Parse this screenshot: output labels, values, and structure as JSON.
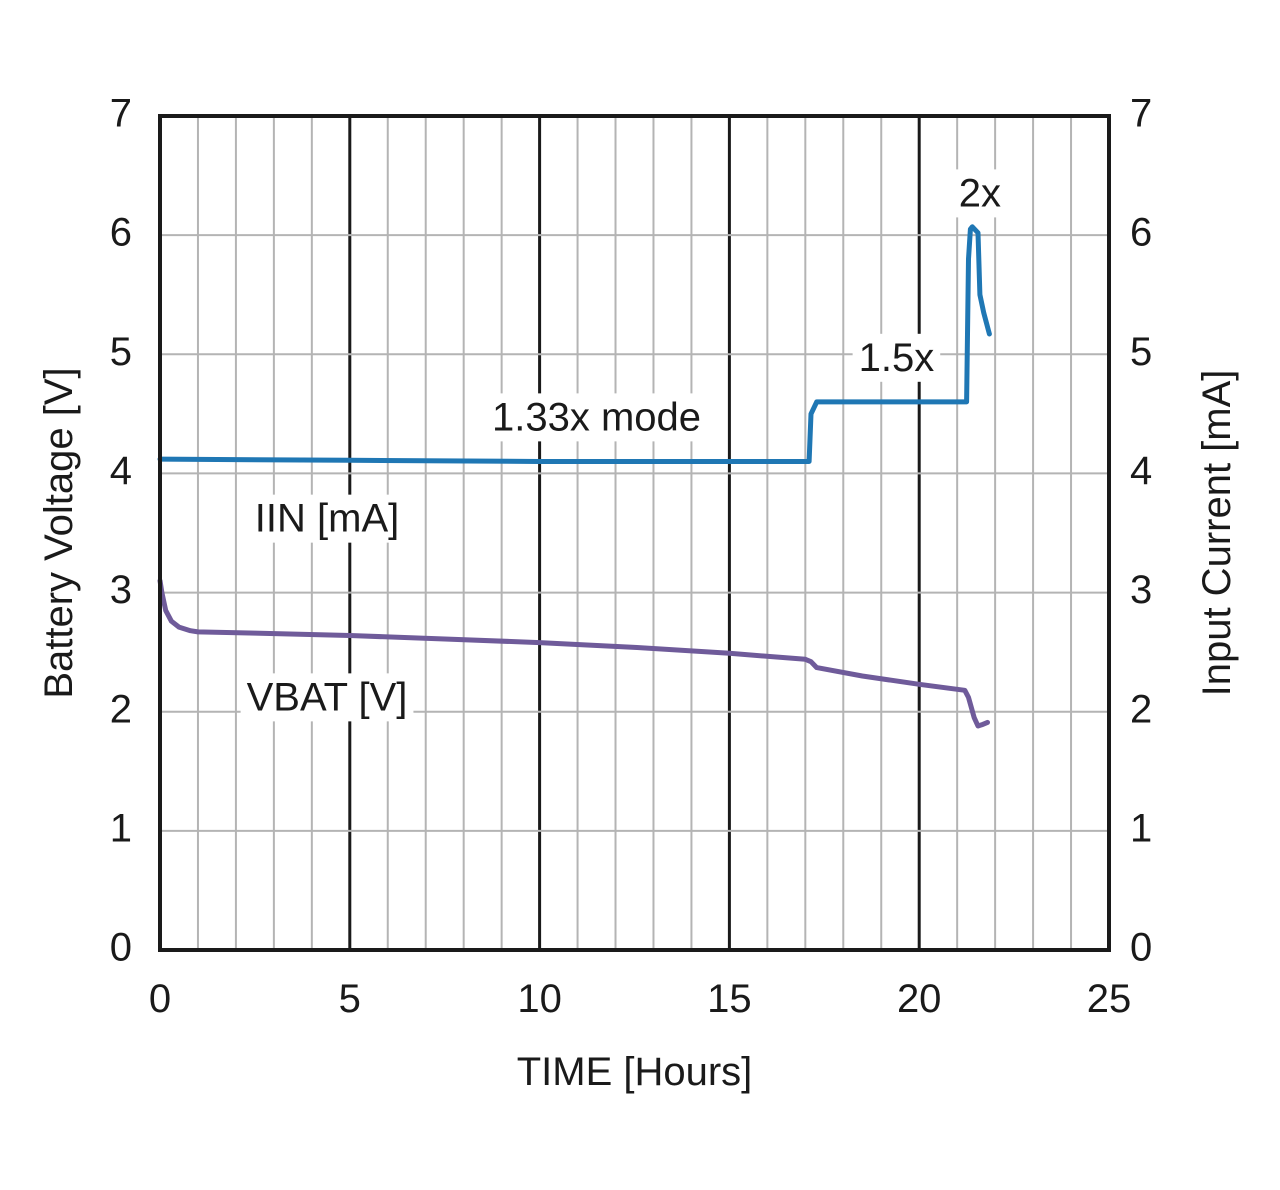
{
  "chart_data": {
    "type": "line",
    "title": "",
    "xlabel": "TIME [Hours]",
    "ylabel": "Battery Voltage [V]",
    "y2label": "Input Current [mA]",
    "xlim": [
      0,
      25
    ],
    "ylim": [
      0,
      7
    ],
    "y2lim": [
      0,
      7
    ],
    "xticks": [
      "0",
      "5",
      "10",
      "15",
      "20",
      "25"
    ],
    "yticks": [
      "0",
      "1",
      "2",
      "3",
      "4",
      "5",
      "6",
      "7"
    ],
    "y2ticks": [
      "0",
      "1",
      "2",
      "3",
      "4",
      "5",
      "6",
      "7"
    ],
    "grid": true,
    "legend": "none",
    "series": [
      {
        "name": "IIN [mA]",
        "axis": "right",
        "color": "#1f77b4",
        "x": [
          0,
          5,
          10,
          15,
          17.1,
          17.15,
          17.3,
          17.4,
          20,
          21.25,
          21.3,
          21.35,
          21.4,
          21.55,
          21.6,
          21.7,
          21.85
        ],
        "y": [
          4.12,
          4.11,
          4.1,
          4.1,
          4.1,
          4.5,
          4.6,
          4.6,
          4.6,
          4.6,
          5.8,
          6.05,
          6.07,
          6.02,
          5.5,
          5.35,
          5.17
        ]
      },
      {
        "name": "VBAT [V]",
        "axis": "left",
        "color": "#6f5b9a",
        "x": [
          0,
          0.05,
          0.15,
          0.3,
          0.5,
          0.8,
          1.0,
          2.5,
          5,
          7.5,
          10,
          12.5,
          15,
          17.0,
          17.15,
          17.3,
          18.5,
          20,
          21.2,
          21.3,
          21.45,
          21.55,
          21.65,
          21.8
        ],
        "y": [
          3.1,
          3.0,
          2.85,
          2.76,
          2.71,
          2.68,
          2.67,
          2.66,
          2.64,
          2.61,
          2.58,
          2.54,
          2.49,
          2.44,
          2.42,
          2.37,
          2.3,
          2.23,
          2.18,
          2.12,
          1.95,
          1.88,
          1.89,
          1.91
        ]
      }
    ],
    "annotations": [
      {
        "text": "1.33x mode",
        "x": 11.5,
        "y": 4.45,
        "anchor": "middle"
      },
      {
        "text": "1.5x",
        "x": 19.4,
        "y": 4.95,
        "anchor": "middle"
      },
      {
        "text": "2x",
        "x": 21.6,
        "y": 6.33,
        "anchor": "middle"
      },
      {
        "text": "IIN [mA]",
        "x": 4.4,
        "y": 3.6,
        "anchor": "middle"
      },
      {
        "text": "VBAT [V]",
        "x": 4.4,
        "y": 2.1,
        "anchor": "middle"
      }
    ]
  }
}
